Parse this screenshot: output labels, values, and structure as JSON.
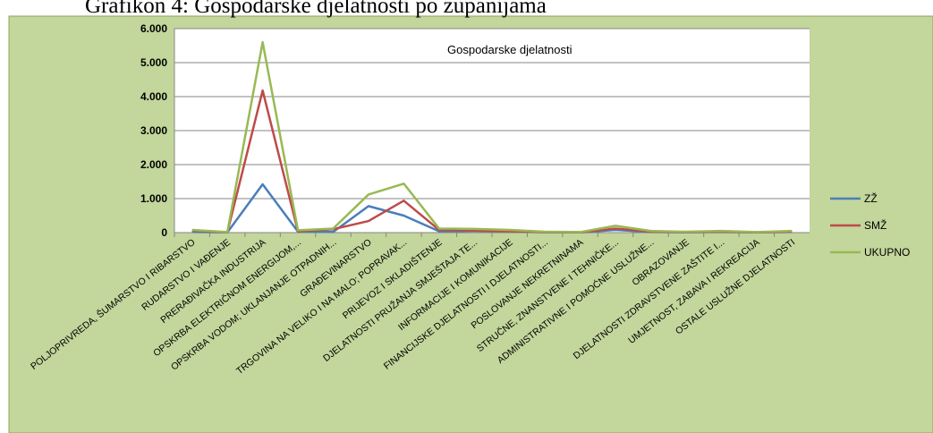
{
  "chart_data": {
    "type": "line",
    "caption": "Grafikon 4: Gospodarske djelatnosti po županijama",
    "title": "Gospodarske djelatnosti",
    "categories": [
      "POLJOPRIVREDA, ŠUMARSTVO I RIBARSTVO",
      "RUDARSTVO I VAĐENJE",
      "PRERAĐIVAČKA INDUSTRIJA",
      "OPSKRBA ELEKTRIČNOM ENERGIJOM,...",
      "OPSKRBA VODOM; UKLANJANJE OTPADNIH...",
      "GRAĐEVINARSTVO",
      "TRGOVINA NA VELIKO I NA MALO; POPRAVAK...",
      "PRIJEVOZ I SKLADIŠTENJE",
      "DJELATNOSTI PRUŽANJA SMJEŠTAJA TE...",
      "INFORMACIJE I KOMUNIKACIJE",
      "FINANCIJSKE DJELATNOSTI I DJELATNOSTI...",
      "POSLOVANJE NEKRETNINAMA",
      "STRUČNE, ZNANSTVENE I TEHNIČKE...",
      "ADMINISTRATIVNE I POMOĆNE USLUŽNE...",
      "OBRAZOVANJE",
      "DJELATNOSTI ZDRAVSTVENE ZAŠTITE I...",
      "UMJETNOST, ZABAVA I REKREACIJA",
      "OSTALE USLUŽNE DJELATNOSTI"
    ],
    "series": [
      {
        "name": "ZŽ",
        "color": "#4a7ebb",
        "values": [
          20,
          5,
          1420,
          30,
          20,
          780,
          500,
          40,
          50,
          40,
          10,
          5,
          80,
          20,
          10,
          20,
          5,
          20
        ]
      },
      {
        "name": "SMŽ",
        "color": "#be4b48",
        "values": [
          60,
          10,
          4180,
          40,
          100,
          340,
          940,
          80,
          60,
          40,
          15,
          10,
          120,
          30,
          15,
          30,
          10,
          30
        ]
      },
      {
        "name": "UKUPNO",
        "color": "#98b954",
        "values": [
          80,
          15,
          5600,
          70,
          120,
          1120,
          1440,
          120,
          110,
          80,
          25,
          15,
          200,
          50,
          25,
          50,
          15,
          50
        ]
      }
    ],
    "ylim": [
      0,
      6000
    ],
    "yticks": [
      0,
      {
        "value": 1000,
        "label": "1.000"
      },
      {
        "value": 2000,
        "label": "2.000"
      },
      {
        "value": 3000,
        "label": "3.000"
      },
      {
        "value": 4000,
        "label": "4.000"
      },
      {
        "value": 5000,
        "label": "5.000"
      },
      {
        "value": 6000,
        "label": "6.000"
      }
    ],
    "grid": true,
    "legend": "right"
  }
}
